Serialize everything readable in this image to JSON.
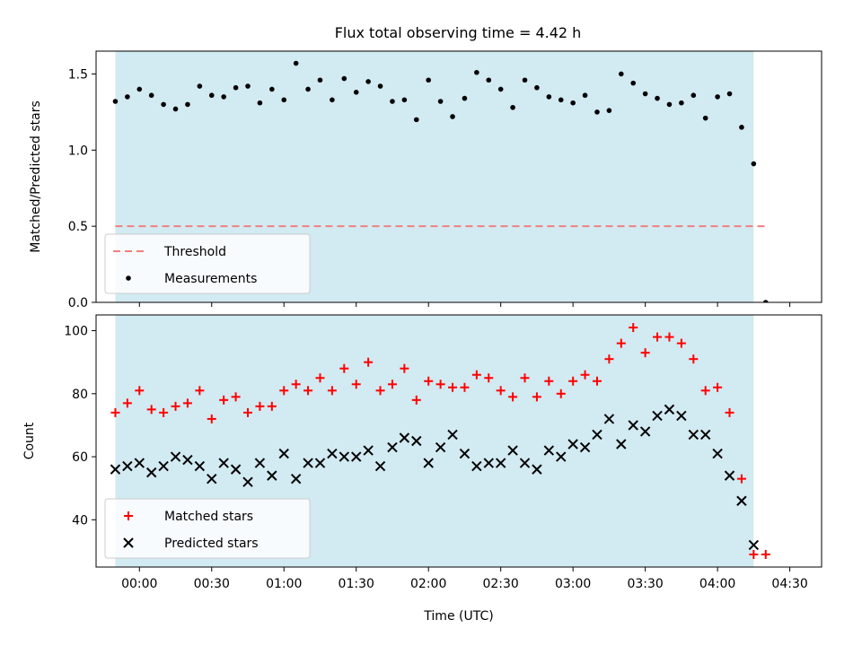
{
  "title": "Flux total observing time = 4.42 h",
  "colors": {
    "span": "#add8e6",
    "threshold": "#f08080",
    "measurements": "#000000",
    "matched": "#ff0000",
    "predicted": "#000000"
  },
  "chart_data": [
    {
      "type": "scatter",
      "panel": "top",
      "ylabel": "Matched/Predicted stars",
      "xlim": [
        -0.3,
        4.72
      ],
      "ylim": [
        0,
        1.65
      ],
      "yticks": [
        0.0,
        0.5,
        1.0,
        1.5
      ],
      "ytick_labels": [
        "0.0",
        "0.5",
        "1.0",
        "1.5"
      ],
      "xticks_hours": [
        0,
        0.5,
        1,
        1.5,
        2,
        2.5,
        3,
        3.5,
        4,
        4.5
      ],
      "shaded_span": [
        -0.1667,
        4.25
      ],
      "legend": {
        "placement": "lower-left",
        "entries": [
          "Threshold",
          "Measurements"
        ]
      },
      "threshold": {
        "name": "Threshold",
        "y": 0.5,
        "x": [
          -0.1667,
          4.333
        ]
      },
      "x_time_start": "23:50",
      "x_time_step_min": 5,
      "series": [
        {
          "name": "Measurements",
          "values": [
            1.32,
            1.35,
            1.4,
            1.36,
            1.3,
            1.27,
            1.3,
            1.42,
            1.36,
            1.35,
            1.41,
            1.42,
            1.31,
            1.4,
            1.33,
            1.57,
            1.4,
            1.46,
            1.33,
            1.47,
            1.38,
            1.45,
            1.42,
            1.32,
            1.33,
            1.2,
            1.46,
            1.32,
            1.22,
            1.34,
            1.51,
            1.46,
            1.4,
            1.28,
            1.46,
            1.41,
            1.35,
            1.33,
            1.31,
            1.36,
            1.25,
            1.26,
            1.5,
            1.44,
            1.37,
            1.34,
            1.3,
            1.31,
            1.36,
            1.21,
            1.35,
            1.37,
            1.15,
            0.91,
            0.0
          ]
        }
      ]
    },
    {
      "type": "scatter",
      "panel": "bottom",
      "xlabel": "Time (UTC)",
      "ylabel": "Count",
      "xlim": [
        -0.3,
        4.72
      ],
      "ylim": [
        25,
        105
      ],
      "yticks": [
        40,
        60,
        80,
        100
      ],
      "ytick_labels": [
        "40",
        "60",
        "80",
        "100"
      ],
      "xticks_hours": [
        0,
        0.5,
        1,
        1.5,
        2,
        2.5,
        3,
        3.5,
        4,
        4.5
      ],
      "xtick_labels": [
        "00:00",
        "00:30",
        "01:00",
        "01:30",
        "02:00",
        "02:30",
        "03:00",
        "03:30",
        "04:00",
        "04:30"
      ],
      "shaded_span": [
        -0.1667,
        4.25
      ],
      "legend": {
        "placement": "lower-left",
        "entries": [
          "Matched stars",
          "Predicted stars"
        ]
      },
      "x_time_start": "23:50",
      "x_time_step_min": 5,
      "series": [
        {
          "name": "Matched stars",
          "marker": "plus",
          "values": [
            74,
            77,
            81,
            75,
            74,
            76,
            77,
            81,
            72,
            78,
            79,
            74,
            76,
            76,
            81,
            83,
            81,
            85,
            81,
            88,
            83,
            90,
            81,
            83,
            88,
            78,
            84,
            83,
            82,
            82,
            86,
            85,
            81,
            79,
            85,
            79,
            84,
            80,
            84,
            86,
            84,
            91,
            96,
            101,
            93,
            98,
            98,
            96,
            91,
            81,
            82,
            74,
            53,
            29,
            29
          ]
        },
        {
          "name": "Predicted stars",
          "marker": "x",
          "values": [
            56,
            57,
            58,
            55,
            57,
            60,
            59,
            57,
            53,
            58,
            56,
            52,
            58,
            54,
            61,
            53,
            58,
            58,
            61,
            60,
            60,
            62,
            57,
            63,
            66,
            65,
            58,
            63,
            67,
            61,
            57,
            58,
            58,
            62,
            58,
            56,
            62,
            60,
            64,
            63,
            67,
            72,
            64,
            70,
            68,
            73,
            75,
            73,
            67,
            67,
            61,
            54,
            46,
            32
          ]
        }
      ]
    }
  ]
}
